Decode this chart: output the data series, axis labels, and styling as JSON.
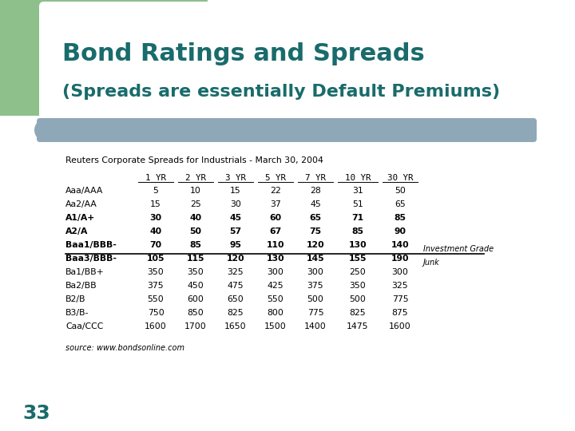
{
  "title": "Bond Ratings and Spreads",
  "subtitle": "(Spreads are essentially Default Premiums)",
  "slide_number": "33",
  "title_color": "#1a6b6b",
  "bg_color": "#ffffff",
  "green_rect_color": "#8dc08a",
  "blue_bar_color": "#8fa8b8",
  "table_subtitle": "Reuters Corporate Spreads for Industrials - March 30, 2004",
  "source": "source: www.bondsonline.com",
  "headers": [
    "",
    "1 YR",
    "2 YR",
    "3 YR",
    "5 YR",
    "7 YR",
    "10 YR",
    "30 YR"
  ],
  "rows": [
    [
      "Aaa/AAA",
      "5",
      "10",
      "15",
      "22",
      "28",
      "31",
      "50"
    ],
    [
      "Aa2/AA",
      "15",
      "25",
      "30",
      "37",
      "45",
      "51",
      "65"
    ],
    [
      "A1/A+",
      "30",
      "40",
      "45",
      "60",
      "65",
      "71",
      "85"
    ],
    [
      "A2/A",
      "40",
      "50",
      "57",
      "67",
      "75",
      "85",
      "90"
    ],
    [
      "Baa1/BBB-",
      "70",
      "85",
      "95",
      "110",
      "120",
      "130",
      "140"
    ],
    [
      "Baa3/BBB-",
      "105",
      "115",
      "120",
      "130",
      "145",
      "155",
      "190"
    ],
    [
      "Ba1/BB+",
      "350",
      "350",
      "325",
      "300",
      "300",
      "250",
      "300"
    ],
    [
      "Ba2/BB",
      "375",
      "450",
      "475",
      "425",
      "375",
      "350",
      "325"
    ],
    [
      "B2/B",
      "550",
      "600",
      "650",
      "550",
      "500",
      "500",
      "775"
    ],
    [
      "B3/B-",
      "750",
      "850",
      "825",
      "800",
      "775",
      "825",
      "875"
    ],
    [
      "Caa/CCC",
      "1600",
      "1700",
      "1650",
      "1500",
      "1400",
      "1475",
      "1600"
    ]
  ],
  "investment_grade_label": "Investment Grade",
  "junk_label": "Junk",
  "divider_after_row": 5,
  "bold_rows": [
    2,
    3,
    4,
    5
  ]
}
